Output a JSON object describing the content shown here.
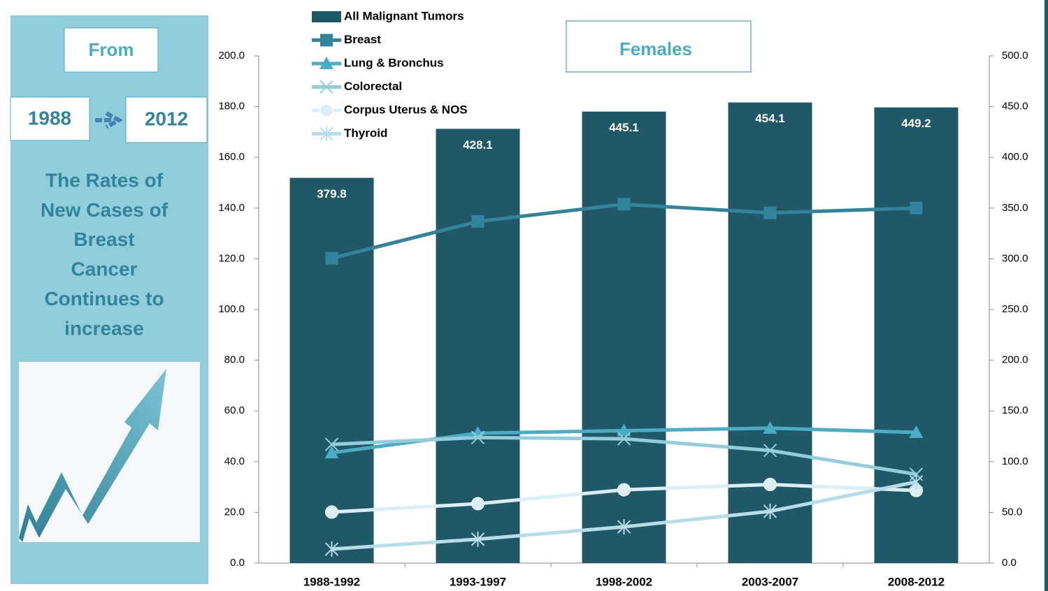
{
  "sidebar": {
    "from": "From",
    "start": "1988",
    "end": "2012",
    "headline": [
      "The Rates of",
      "New Cases of",
      "Breast",
      "Cancer",
      "Continues to",
      "increase"
    ]
  },
  "chart_data": {
    "type": "bar",
    "title": "Females",
    "categories": [
      "1988-1992",
      "1993-1997",
      "1998-2002",
      "2003-2007",
      "2008-2012"
    ],
    "series": [
      {
        "name": "All Malignant Tumors",
        "type": "bar",
        "axis": "y2",
        "color": "#215868",
        "values": [
          379.8,
          428.1,
          445.1,
          454.1,
          449.2
        ]
      },
      {
        "name": "Breast",
        "type": "line",
        "marker": "square",
        "color": "#31849b",
        "values": [
          120.2,
          134.7,
          141.5,
          138.1,
          140.0
        ]
      },
      {
        "name": "Lung & Bronchus",
        "type": "line",
        "marker": "triangle",
        "color": "#4bacc6",
        "values": [
          43.5,
          51.2,
          52.2,
          53.2,
          51.5
        ]
      },
      {
        "name": "Colorectal",
        "type": "line",
        "marker": "x",
        "color": "#92cddc",
        "values": [
          46.8,
          49.5,
          49.0,
          44.4,
          35.0
        ]
      },
      {
        "name": "Corpus Uterus & NOS",
        "type": "line",
        "marker": "circle",
        "color": "#dbeef4",
        "values": [
          20.1,
          23.4,
          28.9,
          31.0,
          28.6
        ]
      },
      {
        "name": "Thyroid",
        "type": "line",
        "marker": "star",
        "color": "#b7dde8",
        "values": [
          5.5,
          9.4,
          14.3,
          20.4,
          32.0
        ]
      }
    ],
    "ylim": [
      0,
      200
    ],
    "yticks": [
      {
        "value": 0,
        "label": "0.0"
      },
      {
        "value": 20,
        "label": "20.0"
      },
      {
        "value": 40,
        "label": "40.0"
      },
      {
        "value": 60,
        "label": "60.0"
      },
      {
        "value": 80,
        "label": "80.0"
      },
      {
        "value": 100,
        "label": "100.0"
      },
      {
        "value": 120,
        "label": "120.0"
      },
      {
        "value": 140,
        "label": "140.0"
      },
      {
        "value": 160,
        "label": "160.0"
      },
      {
        "value": 180,
        "label": "180.0"
      },
      {
        "value": 200,
        "label": "200.0"
      }
    ],
    "y2lim": [
      0,
      500
    ],
    "y2ticks": [
      {
        "value": 0,
        "label": "0.0"
      },
      {
        "value": 50,
        "label": "50.0"
      },
      {
        "value": 100,
        "label": "100.0"
      },
      {
        "value": 150,
        "label": "150.0"
      },
      {
        "value": 200,
        "label": "200.0"
      },
      {
        "value": 250,
        "label": "250.0"
      },
      {
        "value": 300,
        "label": "300.0"
      },
      {
        "value": 350,
        "label": "350.0"
      },
      {
        "value": 400,
        "label": "400.0"
      },
      {
        "value": 450,
        "label": "450.0"
      },
      {
        "value": 500,
        "label": "500.0"
      }
    ],
    "legend": "top-left"
  }
}
